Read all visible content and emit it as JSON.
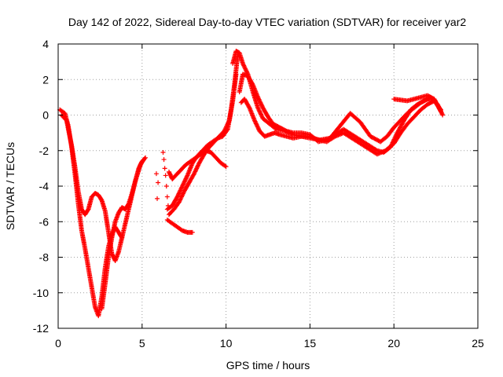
{
  "chart_data": {
    "type": "scatter",
    "title": "Day 142 of 2022, Sidereal Day-to-day VTEC variation (SDTVAR) for receiver yar2",
    "xlabel": "GPS time / hours",
    "ylabel": "SDTVAR / TECUs",
    "xlim": [
      0,
      25
    ],
    "ylim": [
      -12,
      4
    ],
    "xticks": [
      0,
      5,
      10,
      15,
      20,
      25
    ],
    "yticks": [
      -12,
      -10,
      -8,
      -6,
      -4,
      -2,
      0,
      2,
      4
    ],
    "grid": true,
    "marker": "+",
    "color": "#ff0000",
    "series": [
      {
        "name": "track-1",
        "x": [
          0.1,
          0.4,
          0.6,
          0.8,
          1.0,
          1.2,
          1.4,
          1.6,
          1.8,
          2.0,
          2.2,
          2.4,
          2.6,
          2.8,
          3.0,
          3.2,
          3.4,
          3.6,
          3.8,
          4.0,
          4.3,
          4.6,
          4.9,
          5.1
        ],
        "y": [
          0.3,
          0.1,
          -0.6,
          -1.8,
          -3.3,
          -5.0,
          -6.5,
          -7.5,
          -8.6,
          -9.7,
          -10.8,
          -11.3,
          -10.2,
          -8.6,
          -7.4,
          -6.7,
          -6.3,
          -6.6,
          -6.9,
          -6.1,
          -4.9,
          -3.7,
          -2.8,
          -2.5
        ]
      },
      {
        "name": "track-2",
        "x": [
          0.2,
          0.5,
          0.8,
          1.0,
          1.2,
          1.4,
          1.6,
          1.8,
          2.0,
          2.2,
          2.4,
          2.6,
          2.8,
          3.0,
          3.2,
          3.4,
          3.6,
          3.8
        ],
        "y": [
          0.0,
          -0.3,
          -1.7,
          -2.9,
          -4.3,
          -5.3,
          -5.6,
          -5.3,
          -4.6,
          -4.4,
          -4.5,
          -4.8,
          -5.4,
          -6.6,
          -7.8,
          -8.2,
          -7.7,
          -6.9
        ]
      },
      {
        "name": "track-3",
        "x": [
          2.6,
          2.8,
          3.0,
          3.2,
          3.4,
          3.6,
          3.8,
          4.0,
          4.2,
          4.4,
          4.6,
          4.8,
          5.0,
          5.2
        ],
        "y": [
          -10.9,
          -9.5,
          -8.0,
          -6.9,
          -6.0,
          -5.5,
          -5.2,
          -5.3,
          -5.0,
          -4.4,
          -3.7,
          -3.0,
          -2.6,
          -2.4
        ]
      },
      {
        "name": "track-4",
        "x": [
          6.6,
          6.8,
          7.0,
          7.3,
          7.6,
          7.9,
          8.2,
          8.5,
          8.8,
          9.1,
          9.4,
          9.7,
          10.0
        ],
        "y": [
          -3.2,
          -3.6,
          -3.4,
          -3.1,
          -2.8,
          -2.6,
          -2.4,
          -2.2,
          -2.0,
          -2.1,
          -2.4,
          -2.7,
          -2.9
        ]
      },
      {
        "name": "track-5",
        "x": [
          6.5,
          6.8,
          7.1,
          7.4,
          7.7,
          8.0,
          8.3,
          8.6,
          8.9,
          9.2,
          9.5,
          9.8,
          10.1,
          10.3,
          10.5,
          10.7
        ],
        "y": [
          -5.3,
          -5.1,
          -4.6,
          -4.0,
          -3.4,
          -2.7,
          -2.3,
          -2.0,
          -1.7,
          -1.5,
          -1.3,
          -1.2,
          -0.8,
          0.3,
          1.7,
          3.4
        ]
      },
      {
        "name": "track-6",
        "x": [
          6.6,
          6.9,
          7.2,
          7.5,
          7.8,
          8.1,
          8.4,
          8.7,
          9.0,
          9.3,
          9.6,
          9.9,
          10.2,
          10.4,
          10.6
        ],
        "y": [
          -5.6,
          -5.3,
          -4.9,
          -4.3,
          -3.8,
          -3.3,
          -2.7,
          -2.2,
          -1.8,
          -1.5,
          -1.2,
          -0.9,
          -0.3,
          0.8,
          2.3
        ]
      },
      {
        "name": "track-7",
        "x": [
          6.5,
          6.8,
          7.1,
          7.4,
          7.7,
          8.0
        ],
        "y": [
          -5.9,
          -6.1,
          -6.3,
          -6.5,
          -6.6,
          -6.6
        ]
      },
      {
        "name": "track-8",
        "x": [
          10.4,
          10.6,
          10.8,
          11.0,
          11.3,
          11.6,
          11.9,
          12.2,
          12.6,
          13.0,
          13.5,
          14.0,
          14.5,
          15.0,
          15.6,
          16.2,
          16.8,
          17.4,
          18.0,
          18.6,
          19.2,
          19.6,
          20.0,
          20.4,
          20.8,
          21.2,
          21.6,
          22.0,
          22.4,
          22.8
        ],
        "y": [
          2.9,
          3.6,
          3.5,
          2.9,
          2.3,
          1.3,
          0.4,
          -0.2,
          -0.5,
          -0.8,
          -0.9,
          -1.1,
          -1.2,
          -1.3,
          -1.4,
          -1.3,
          -0.6,
          0.1,
          -0.4,
          -1.2,
          -1.5,
          -1.2,
          -0.7,
          -0.3,
          0.1,
          0.4,
          0.7,
          0.9,
          0.9,
          0.2
        ]
      },
      {
        "name": "track-9",
        "x": [
          10.8,
          11.0,
          11.3,
          11.6,
          11.9,
          12.2,
          12.5,
          12.8,
          13.2,
          13.6,
          14.0,
          14.5,
          15.0,
          15.5,
          16.0,
          16.5,
          17.0,
          17.5,
          18.0,
          18.5,
          19.0,
          19.4,
          19.8,
          20.2,
          20.6,
          21.0,
          21.4,
          21.8,
          22.2,
          22.6,
          22.9
        ],
        "y": [
          1.3,
          2.3,
          2.2,
          1.7,
          1.0,
          0.4,
          -0.1,
          -0.5,
          -0.7,
          -0.9,
          -1.0,
          -1.0,
          -1.1,
          -1.5,
          -1.4,
          -1.1,
          -0.8,
          -1.1,
          -1.4,
          -1.7,
          -2.0,
          -2.1,
          -1.8,
          -1.0,
          -0.3,
          0.3,
          0.6,
          0.8,
          1.0,
          0.6,
          0.0
        ]
      },
      {
        "name": "track-10",
        "x": [
          10.9,
          11.1,
          11.4,
          11.7,
          12.0,
          12.3,
          12.6,
          12.9,
          13.2,
          13.6,
          14.0,
          14.5,
          15.0,
          15.5,
          16.0,
          16.5,
          17.0,
          17.5,
          18.0,
          18.5,
          19.0,
          19.5,
          20.0,
          20.4,
          20.8,
          21.2,
          21.6,
          22.0,
          22.4,
          22.8
        ],
        "y": [
          0.7,
          0.9,
          0.4,
          -0.3,
          -0.9,
          -1.2,
          -1.1,
          -1.0,
          -1.1,
          -1.2,
          -1.3,
          -1.2,
          -1.2,
          -1.4,
          -1.5,
          -1.2,
          -1.0,
          -1.3,
          -1.6,
          -1.9,
          -2.2,
          -2.0,
          -1.6,
          -1.0,
          -0.5,
          -0.1,
          0.3,
          0.6,
          0.8,
          0.3
        ]
      },
      {
        "name": "track-11",
        "x": [
          20.0,
          20.4,
          20.8,
          21.2,
          21.6,
          22.0,
          22.4,
          22.8
        ],
        "y": [
          0.9,
          0.85,
          0.8,
          0.9,
          1.0,
          1.1,
          0.9,
          0.2
        ]
      },
      {
        "name": "scattered",
        "x": [
          5.85,
          5.95,
          5.9,
          6.25,
          6.3,
          6.35,
          6.4,
          6.45,
          6.5,
          6.55
        ],
        "y": [
          -3.3,
          -3.8,
          -4.7,
          -2.1,
          -2.5,
          -3.0,
          -3.4,
          -4.0,
          -4.6,
          -5.1
        ]
      }
    ]
  }
}
